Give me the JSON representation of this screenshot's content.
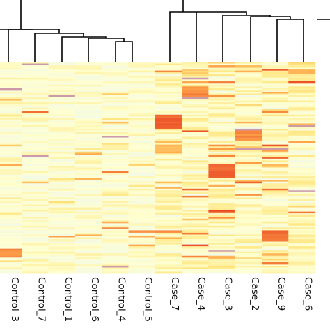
{
  "chart_data": {
    "type": "heatmap",
    "columns": [
      "Control_3",
      "Control_7",
      "Control_1",
      "Control_6",
      "Control_4",
      "Control_5",
      "Case_7",
      "Case_4",
      "Case_3",
      "Case_2",
      "Case_9",
      "Case_6"
    ],
    "groups": {
      "control": [
        "Control_3",
        "Control_7",
        "Control_1",
        "Control_6",
        "Control_4",
        "Control_5"
      ],
      "case": [
        "Case_7",
        "Case_4",
        "Case_3",
        "Case_2",
        "Case_9",
        "Case_6"
      ]
    },
    "colors": {
      "low": "#eef7ef",
      "mid": "#ffffd0",
      "high1": "#ffe680",
      "high2": "#ffa94d",
      "high3": "#e63b1f",
      "line": "#cc99aa"
    },
    "value_range": [
      0,
      1
    ],
    "n_rows": 120,
    "dendrogram": "column clustering shown on top; two main clusters (Control vs Case)",
    "grid": false,
    "legend": "none",
    "hot_spots": [
      {
        "column": "Control_3",
        "row_from": 106,
        "row_to": 110,
        "value": 0.9
      },
      {
        "column": "Case_7",
        "row_from": 30,
        "row_to": 37,
        "value": 0.95
      },
      {
        "column": "Case_7",
        "row_from": 47,
        "row_to": 51,
        "value": 0.8
      },
      {
        "column": "Case_4",
        "row_from": 14,
        "row_to": 20,
        "value": 0.9
      },
      {
        "column": "Case_4",
        "row_from": 5,
        "row_to": 7,
        "value": 0.7
      },
      {
        "column": "Case_3",
        "row_from": 58,
        "row_to": 65,
        "value": 0.95
      },
      {
        "column": "Case_2",
        "row_from": 38,
        "row_to": 44,
        "value": 0.9
      },
      {
        "column": "Case_9",
        "row_from": 96,
        "row_to": 101,
        "value": 0.95
      },
      {
        "column": "Case_6",
        "row_from": 4,
        "row_to": 6,
        "value": 0.8
      }
    ]
  }
}
